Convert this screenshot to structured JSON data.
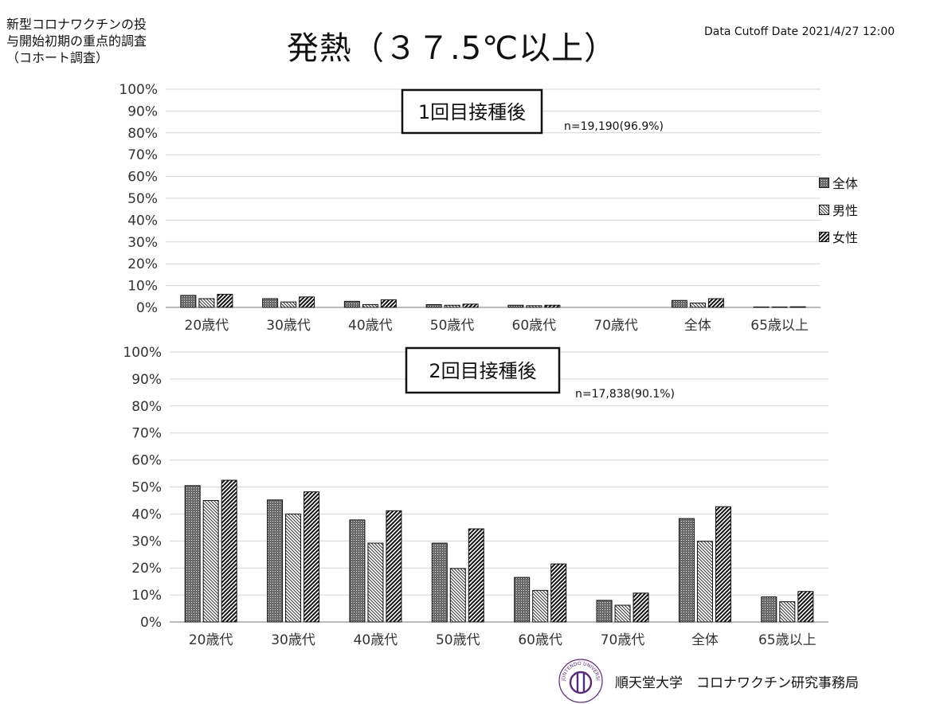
{
  "header": {
    "left_title_lines": [
      "新型コロナワクチンの投",
      "与開始初期の重点的調査",
      "（コホート調査）"
    ],
    "main_title": "発熱（３７.5℃以上）",
    "cutoff": "Data Cutoff Date 2021/4/27 12:00"
  },
  "legend": {
    "items": [
      {
        "label": "全体",
        "pattern": "dense"
      },
      {
        "label": "男性",
        "pattern": "diag-thin"
      },
      {
        "label": "女性",
        "pattern": "diag-thick"
      }
    ],
    "placement": "right"
  },
  "footer": {
    "institution": "順天堂大学　コロナワクチン研究事務局",
    "logo_label": "JUNTENDO UNIVERSITY TOKYO 1838"
  },
  "chart_data": [
    {
      "type": "bar",
      "title": "1回目接種後",
      "annotation": "n=19,190(96.9%)",
      "categories": [
        "20歳代",
        "30歳代",
        "40歳代",
        "50歳代",
        "60歳代",
        "70歳代",
        "全体",
        "65歳以上"
      ],
      "series": [
        {
          "name": "全体",
          "values": [
            5.5,
            4.0,
            2.8,
            1.3,
            1.0,
            0.0,
            3.2,
            0.2
          ]
        },
        {
          "name": "男性",
          "values": [
            4.0,
            2.5,
            1.3,
            1.0,
            0.8,
            0.0,
            2.0,
            0.2
          ]
        },
        {
          "name": "女性",
          "values": [
            6.0,
            4.8,
            3.5,
            1.5,
            1.0,
            0.0,
            4.0,
            0.3
          ]
        }
      ],
      "ylim": [
        0,
        100
      ],
      "yticks": [
        "0%",
        "10%",
        "20%",
        "30%",
        "40%",
        "50%",
        "60%",
        "70%",
        "80%",
        "90%",
        "100%"
      ],
      "grid": true
    },
    {
      "type": "bar",
      "title": "2回目接種後",
      "annotation": "n=17,838(90.1%)",
      "categories": [
        "20歳代",
        "30歳代",
        "40歳代",
        "50歳代",
        "60歳代",
        "70歳代",
        "全体",
        "65歳以上"
      ],
      "series": [
        {
          "name": "全体",
          "values": [
            50.5,
            45.2,
            37.8,
            29.2,
            16.5,
            8.0,
            38.3,
            9.3
          ]
        },
        {
          "name": "男性",
          "values": [
            45.0,
            40.0,
            29.2,
            19.8,
            11.7,
            6.2,
            29.9,
            7.5
          ]
        },
        {
          "name": "女性",
          "values": [
            52.5,
            48.2,
            41.2,
            34.5,
            21.5,
            10.7,
            42.7,
            11.3
          ]
        }
      ],
      "ylim": [
        0,
        100
      ],
      "yticks": [
        "0%",
        "10%",
        "20%",
        "30%",
        "40%",
        "50%",
        "60%",
        "70%",
        "80%",
        "90%",
        "100%"
      ],
      "grid": true
    }
  ]
}
